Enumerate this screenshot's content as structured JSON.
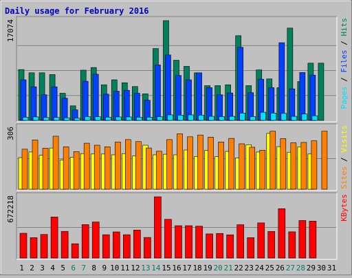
{
  "chart_data": {
    "type": "bar",
    "title": "Daily usage for February 2016",
    "categories": [
      "1",
      "2",
      "3",
      "4",
      "5",
      "6",
      "7",
      "8",
      "9",
      "10",
      "11",
      "12",
      "13",
      "14",
      "15",
      "16",
      "17",
      "18",
      "19",
      "20",
      "21",
      "22",
      "23",
      "24",
      "25",
      "26",
      "27",
      "28",
      "29",
      "30",
      "31"
    ],
    "weekend_days": [
      "6",
      "7",
      "13",
      "14",
      "20",
      "21",
      "27",
      "28"
    ],
    "panels": [
      {
        "id": "requests",
        "ymax_label": "17074",
        "ylim": [
          0,
          17074
        ],
        "side_label": [
          {
            "text": "Pages",
            "color": "#00e0ff"
          },
          {
            "text": " / ",
            "color": "#000000"
          },
          {
            "text": "Files",
            "color": "#0040ff"
          },
          {
            "text": " / ",
            "color": "#000000"
          },
          {
            "text": "Hits",
            "color": "#00805c"
          }
        ],
        "series": [
          {
            "name": "Hits",
            "color": "#00805c",
            "values": [
              8700,
              8150,
              8150,
              7850,
              4650,
              2500,
              8600,
              9050,
              6100,
              6950,
              6450,
              5800,
              4550,
              12300,
              17074,
              10300,
              9250,
              8150,
              5950,
              5950,
              6100,
              14500,
              5950,
              8650,
              7100,
              5600,
              15800,
              6650,
              9800,
              9800,
              null
            ]
          },
          {
            "name": "Files",
            "color": "#0040ff",
            "values": [
              6950,
              5750,
              4400,
              5750,
              3800,
              1800,
              6700,
              7900,
              4500,
              5000,
              5150,
              4650,
              3450,
              9500,
              11200,
              7700,
              6950,
              8150,
              5600,
              4400,
              4700,
              12500,
              4750,
              7050,
              5600,
              13300,
              5400,
              8200,
              7750,
              null,
              null
            ]
          },
          {
            "name": "Pages",
            "color": "#00e0ff",
            "values": [
              550,
              600,
              500,
              500,
              450,
              380,
              650,
              650,
              550,
              600,
              600,
              550,
              550,
              650,
              950,
              900,
              950,
              900,
              700,
              650,
              700,
              1250,
              650,
              1400,
              1250,
              1200,
              700,
              1100,
              800,
              null,
              null
            ]
          }
        ]
      },
      {
        "id": "visits",
        "ymax_label": "306",
        "ylim": [
          0,
          306
        ],
        "side_label": [
          {
            "text": "Sites",
            "color": "#ff8000"
          },
          {
            "text": " / ",
            "color": "#000000"
          },
          {
            "text": "Visits",
            "color": "#ffff00"
          }
        ],
        "series": [
          {
            "name": "Visits",
            "color": "#ffff00",
            "values": [
              158,
              186,
              170,
              206,
              146,
              160,
              178,
              176,
              176,
              172,
              178,
              166,
              220,
              172,
              175,
              172,
              196,
              164,
              194,
              163,
              189,
              156,
              222,
              186,
              279,
              213,
              185,
              212,
              176,
              null,
              null
            ]
          },
          {
            "name": "Sites",
            "color": "#ff8000",
            "values": [
              200,
              246,
              205,
              265,
              212,
              188,
              230,
              220,
              212,
              236,
              248,
              238,
              206,
              190,
              248,
              277,
              262,
              271,
              260,
              236,
              254,
              227,
              210,
              195,
              290,
              253,
              232,
              234,
              242,
              290,
              null
            ]
          }
        ]
      },
      {
        "id": "kbytes",
        "ymax_label": "672218",
        "ylim": [
          0,
          672218
        ],
        "side_label": [
          {
            "text": "KBytes",
            "color": "#ff0000"
          }
        ],
        "series": [
          {
            "name": "KBytes",
            "color": "#ff0000",
            "values": [
              272000,
              224000,
              259000,
              451000,
              293000,
              157000,
              367000,
              396000,
              256000,
              287000,
              256000,
              307000,
              226000,
              672218,
              425000,
              355000,
              355000,
              350000,
              265000,
              270000,
              255000,
              366000,
              224000,
              386000,
              292000,
              542000,
              288000,
              412000,
              405000,
              null,
              null
            ]
          }
        ]
      }
    ]
  }
}
